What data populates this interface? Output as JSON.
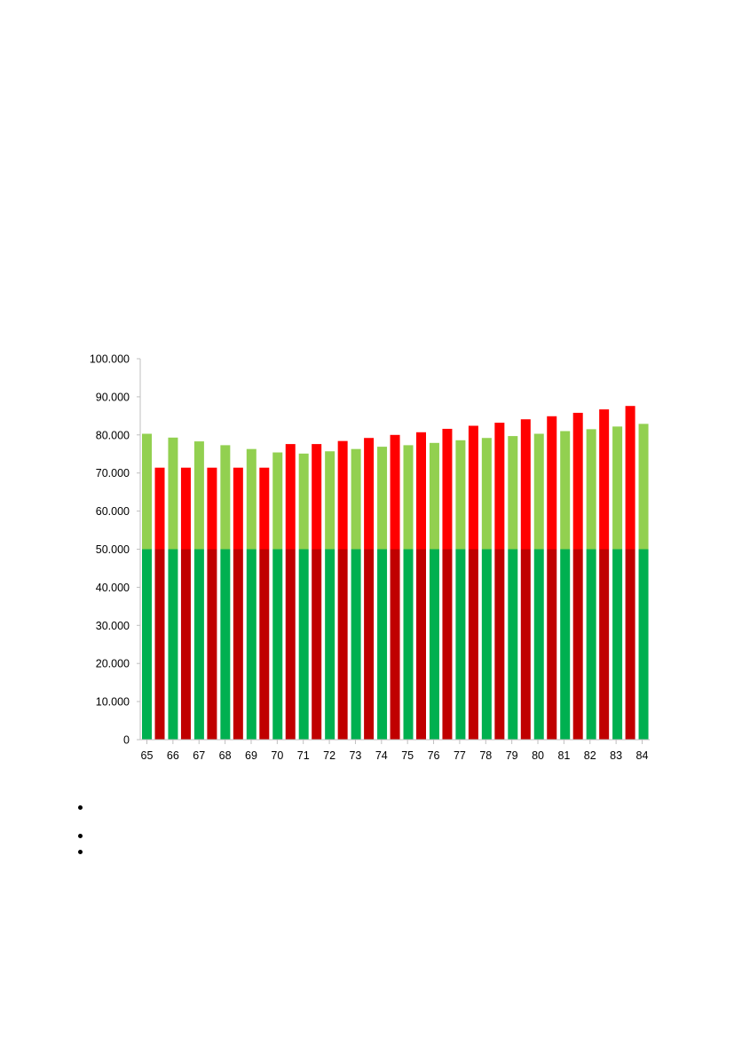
{
  "chart_data": {
    "type": "bar",
    "stacked": true,
    "ylim": [
      0,
      100000
    ],
    "y_ticks": [
      0,
      10000,
      20000,
      30000,
      40000,
      50000,
      60000,
      70000,
      80000,
      90000,
      100000
    ],
    "y_tick_labels": [
      "0",
      "10.000",
      "20.000",
      "30.000",
      "40.000",
      "50.000",
      "60.000",
      "70.000",
      "80.000",
      "90.000",
      "100.000"
    ],
    "x_tick_labels": [
      "65",
      "66",
      "67",
      "68",
      "69",
      "70",
      "71",
      "72",
      "73",
      "74",
      "75",
      "76",
      "77",
      "78",
      "79",
      "80",
      "81",
      "82",
      "83",
      "84"
    ],
    "grid": false,
    "legend": "none",
    "groups": [
      {
        "color_base": "#00b050",
        "color_top": "#92d050",
        "base_values": [
          50000,
          50000,
          50000,
          50000,
          50000,
          50000,
          50000,
          50000,
          50000,
          50000,
          50000,
          50000,
          50000,
          50000,
          50000,
          50000,
          50000,
          50000,
          50000,
          50000
        ],
        "totals": [
          80300,
          79300,
          78300,
          77300,
          76300,
          75400,
          75100,
          75700,
          76300,
          76900,
          77300,
          77900,
          78600,
          79200,
          79700,
          80300,
          81000,
          81500,
          82200,
          82900
        ]
      },
      {
        "color_base": "#c00000",
        "color_top": "#ff0000",
        "base_values": [
          50000,
          50000,
          50000,
          50000,
          50000,
          50000,
          50000,
          50000,
          50000,
          50000,
          50000,
          50000,
          50000,
          50000,
          50000,
          50000,
          50000,
          50000,
          50000
        ],
        "totals": [
          71400,
          71400,
          71400,
          71400,
          71400,
          77600,
          77600,
          78400,
          79200,
          80000,
          80700,
          81600,
          82400,
          83200,
          84100,
          84900,
          85800,
          86700,
          87600
        ]
      }
    ]
  },
  "bullets": [
    "",
    "",
    ""
  ]
}
